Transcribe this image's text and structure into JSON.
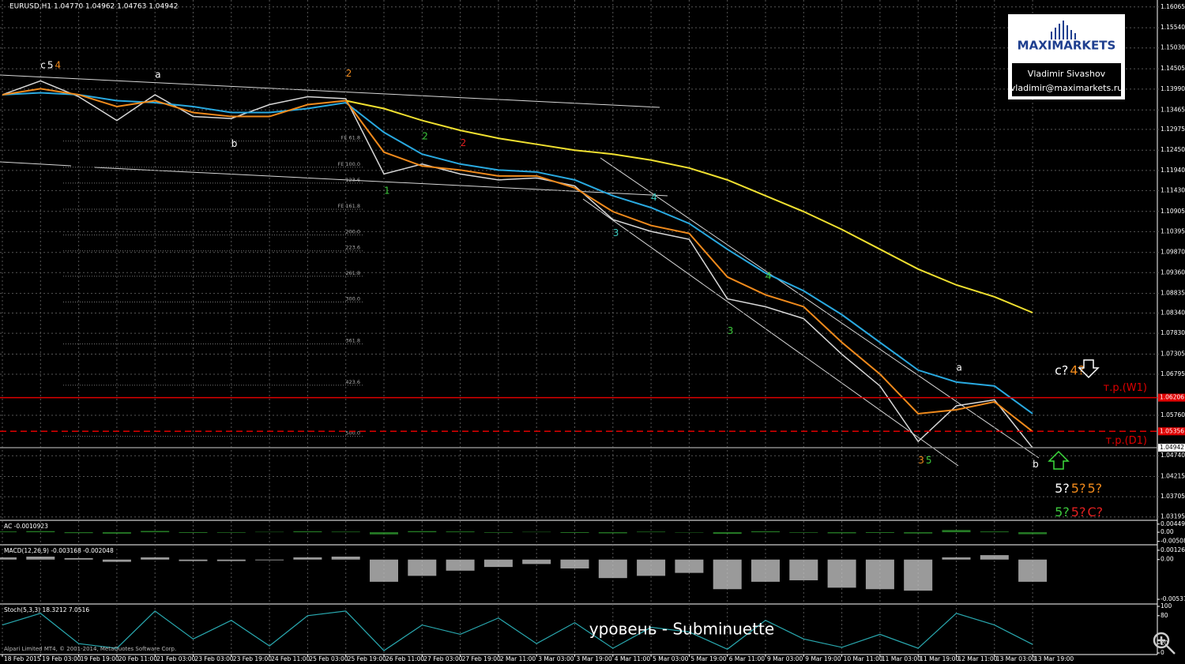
{
  "header": "EURUSD,H1  1.04770 1.04962 1.04763 1.04942",
  "logo": {
    "brand": "MAXIMARKETS",
    "name": "Vladimir Sivashov",
    "email": "vladimir@maximarkets.ru"
  },
  "caption": "уровень - Subminuette",
  "footer": "Alpari Limited MT4, © 2001-2014, MetaQuotes Software Corp.",
  "chart_data": [
    {
      "type": "line",
      "categories": [
        "18 Feb 2015",
        "19 Feb 03:00",
        "19 Feb 19:00",
        "20 Feb 11:00",
        "21 Feb 03:00",
        "23 Feb 03:00",
        "23 Feb 19:00",
        "24 Feb 11:00",
        "25 Feb 03:00",
        "25 Feb 19:00",
        "26 Feb 11:00",
        "27 Feb 03:00",
        "27 Feb 19:00",
        "2 Mar 11:00",
        "3 Mar 03:00",
        "3 Mar 19:00",
        "4 Mar 11:00",
        "5 Mar 03:00",
        "5 Mar 19:00",
        "6 Mar 11:00",
        "9 Mar 03:00",
        "9 Mar 19:00",
        "10 Mar 11:00",
        "11 Mar 03:00",
        "11 Mar 19:00",
        "12 Mar 11:00",
        "13 Mar 03:00",
        "13 Mar 19:00"
      ],
      "series": [
        {
          "color": "#d8d8d8",
          "values": [
            1.1385,
            1.142,
            1.138,
            1.132,
            1.1385,
            1.133,
            1.1325,
            1.136,
            1.138,
            1.1375,
            1.1185,
            1.121,
            1.1185,
            1.117,
            1.1175,
            1.1155,
            1.107,
            1.104,
            1.102,
            1.087,
            1.085,
            1.082,
            1.073,
            1.065,
            1.051,
            1.06,
            1.0615,
            1.0494
          ]
        },
        {
          "color": "#f0e030",
          "values": [
            null,
            null,
            null,
            null,
            null,
            null,
            null,
            null,
            null,
            1.137,
            1.135,
            1.132,
            1.1295,
            1.1275,
            1.126,
            1.1245,
            1.1235,
            1.122,
            1.12,
            1.117,
            1.113,
            1.109,
            1.1045,
            1.0995,
            1.0945,
            1.0905,
            1.0875,
            1.0835
          ]
        },
        {
          "color": "#29a9e0",
          "values": [
            1.1385,
            1.139,
            1.1385,
            1.137,
            1.1365,
            1.1355,
            1.134,
            1.134,
            1.135,
            1.1365,
            1.129,
            1.1235,
            1.121,
            1.1195,
            1.119,
            1.117,
            1.113,
            1.11,
            1.106,
            1.0995,
            1.0935,
            1.089,
            1.083,
            1.076,
            1.069,
            1.066,
            1.065,
            1.058
          ]
        },
        {
          "color": "#f08a1c",
          "values": [
            1.1385,
            1.14,
            1.1385,
            1.1355,
            1.137,
            1.134,
            1.133,
            1.133,
            1.136,
            1.137,
            1.124,
            1.1205,
            1.1195,
            1.118,
            1.118,
            1.115,
            1.109,
            1.1055,
            1.1035,
            1.0925,
            1.088,
            1.085,
            1.076,
            1.068,
            1.058,
            1.059,
            1.061,
            1.0535
          ]
        }
      ],
      "ylim": [
        1.0313,
        1.1624
      ],
      "yticks": [
        1.16065,
        {
          "value": 1.1554,
          "label": "1.15540"
        },
        {
          "value": 1.1503,
          "label": "1.15030"
        },
        1.14505,
        {
          "value": 1.1399,
          "label": "1.13990"
        },
        1.13465,
        1.12975,
        {
          "value": 1.1245,
          "label": "1.12450"
        },
        {
          "value": 1.1194,
          "label": "1.11940"
        },
        {
          "value": 1.1143,
          "label": "1.11430"
        },
        1.10905,
        1.10395,
        {
          "value": 1.0987,
          "label": "1.09870"
        },
        {
          "value": 1.0936,
          "label": "1.09360"
        },
        1.08835,
        {
          "value": 1.0834,
          "label": "1.08340"
        },
        {
          "value": 1.0783,
          "label": "1.07830"
        },
        1.07305,
        1.06795,
        {
          "value": 1.0576,
          "label": "1.05760"
        },
        {
          "value": 1.0474,
          "label": "1.04740"
        },
        1.04215,
        1.03705,
        1.03195
      ],
      "grid": true,
      "levels": [
        {
          "price": 1.06206,
          "color": "#e00000",
          "style": "solid",
          "note": "т.р.(W1)"
        },
        {
          "price": 1.05356,
          "color": "#e00000",
          "style": "dashed",
          "note": "т.р.(D1)"
        },
        {
          "price": 1.04942,
          "color": "#8a8a8a",
          "style": "solid"
        }
      ],
      "fib_levels": [
        {
          "label": "FE 61.8",
          "price": 1.1268
        },
        {
          "label": "FE 100.0",
          "price": 1.1202
        },
        {
          "label": "123.6",
          "price": 1.1162
        },
        {
          "label": "FE 161.8",
          "price": 1.1096
        },
        {
          "label": "200.0",
          "price": 1.1031
        },
        {
          "label": "223.6",
          "price": 1.0991
        },
        {
          "label": "261.8",
          "price": 1.0927
        },
        {
          "label": "300.0",
          "price": 1.0862
        },
        {
          "label": "361.8",
          "price": 1.0756
        },
        {
          "label": "423.6",
          "price": 1.0652
        },
        {
          "label": "500.0",
          "price": 1.0523
        }
      ],
      "annotations": [
        {
          "text": "c",
          "category": "19 Feb 03:00",
          "price": 1.1459,
          "color": "#ffffff"
        },
        {
          "text": "5",
          "category": "19 Feb 03:00",
          "price": 1.1459,
          "color": "#ffffff"
        },
        {
          "text": "4",
          "category": "19 Feb 03:00",
          "price": 1.1459,
          "color": "#f08a1c"
        },
        {
          "text": "a",
          "category": "21 Feb 03:00",
          "price": 1.1435,
          "color": "#ffffff"
        },
        {
          "text": "b",
          "category": "23 Feb 19:00",
          "price": 1.126,
          "color": "#ffffff"
        },
        {
          "text": "2",
          "category": "25 Feb 19:00",
          "price": 1.1438,
          "color": "#f08a1c"
        },
        {
          "text": "1",
          "category": "26 Feb 11:00",
          "price": 1.1142,
          "color": "#3cc83c"
        },
        {
          "text": "2",
          "category": "27 Feb 03:00",
          "price": 1.1279,
          "color": "#3cc83c"
        },
        {
          "text": "2",
          "category": "27 Feb 19:00",
          "price": 1.1262,
          "color": "#e02020"
        },
        {
          "text": "3",
          "category": "4 Mar 11:00",
          "price": 1.1035,
          "color": "#3ccac0"
        },
        {
          "text": "4",
          "category": "5 Mar 03:00",
          "price": 1.1125,
          "color": "#3ccac0"
        },
        {
          "text": "3",
          "category": "6 Mar 11:00",
          "price": 1.0788,
          "color": "#3cc83c"
        },
        {
          "text": "4",
          "category": "9 Mar 03:00",
          "price": 1.0927,
          "color": "#3cc83c"
        },
        {
          "text": "3",
          "category": "11 Mar 19:00",
          "price": 1.0461,
          "color": "#f08a1c"
        },
        {
          "text": "5",
          "category": "11 Mar 19:00",
          "price": 1.0461,
          "color": "#3cc83c"
        },
        {
          "text": "a",
          "category": "12 Mar 11:00",
          "price": 1.0696,
          "color": "#ffffff"
        },
        {
          "text": "b",
          "category": "13 Mar 19:00",
          "price": 1.0451,
          "color": "#ffffff"
        },
        {
          "text": "c?",
          "category": "13 Mar 19:00",
          "price": 1.0688,
          "color": "#ffffff",
          "size": "big"
        },
        {
          "text": "4?",
          "category": "13 Mar 19:00",
          "price": 1.0688,
          "color": "#f08a1c",
          "size": "big"
        },
        {
          "text": "5?",
          "category": "13 Mar 19:00",
          "price": 1.039,
          "color": "#ffffff",
          "size": "big"
        },
        {
          "text": "5?",
          "category": "13 Mar 19:00",
          "price": 1.039,
          "color": "#f08a1c",
          "size": "big"
        },
        {
          "text": "5?",
          "category": "13 Mar 19:00",
          "price": 1.039,
          "color": "#f08a1c",
          "size": "big"
        },
        {
          "text": "5?",
          "category": "13 Mar 19:00",
          "price": 1.033,
          "color": "#3cc83c",
          "size": "big"
        },
        {
          "text": "5?",
          "category": "13 Mar 19:00",
          "price": 1.033,
          "color": "#e02020",
          "size": "big"
        },
        {
          "text": "C?",
          "category": "13 Mar 19:00",
          "price": 1.033,
          "color": "#e02020",
          "size": "big"
        }
      ]
    },
    {
      "type": "bar",
      "title": "AC -0.0010923",
      "color": "#2e9a2e",
      "values": [
        0.0004,
        0.0006,
        -0.0005,
        -0.0008,
        0.0007,
        -0.0004,
        -0.0003,
        0.0002,
        0.0005,
        0.0003,
        -0.0012,
        0.0006,
        0.0004,
        -0.0003,
        0.0002,
        -0.0004,
        -0.0006,
        0.0003,
        -0.0002,
        -0.0009,
        0.0005,
        -0.0003,
        -0.0006,
        -0.0004,
        -0.0007,
        0.0012,
        0.0004,
        -0.0011
      ],
      "ylim": [
        -0.0061,
        0.0053
      ],
      "yticks": [
        0.004495,
        {
          "value": 0,
          "label": "0.00"
        },
        {
          "value": -0.00508,
          "label": "-0.005080"
        }
      ]
    },
    {
      "type": "bar",
      "title": "MACD(12,26,9) -0.003168 -0.002048",
      "color": "#c0c0c0",
      "values": [
        0.0003,
        0.0004,
        0.0002,
        -0.0003,
        0.0003,
        -0.0002,
        -0.0002,
        -0.0001,
        0.0003,
        0.0004,
        -0.003,
        -0.0022,
        -0.0015,
        -0.001,
        -0.0006,
        -0.0012,
        -0.0025,
        -0.0022,
        -0.0018,
        -0.004,
        -0.003,
        -0.0028,
        -0.0038,
        -0.004,
        -0.0042,
        0.0003,
        0.0006,
        -0.003
      ],
      "ylim": [
        -0.00579,
        0.00168
      ],
      "yticks": [
        0.00126,
        {
          "value": 0,
          "label": "0.00"
        },
        -0.00537
      ]
    },
    {
      "type": "line",
      "title": "Stoch(5,3,3) 18.3212 7.0516",
      "color": "#29a9b0",
      "values": [
        60,
        85,
        20,
        10,
        90,
        30,
        70,
        15,
        80,
        90,
        5,
        60,
        40,
        75,
        20,
        65,
        10,
        55,
        45,
        8,
        70,
        30,
        12,
        40,
        10,
        85,
        60,
        18.3212
      ],
      "ylim": [
        0,
        100
      ],
      "yticks": [
        100,
        80,
        20,
        0
      ]
    }
  ]
}
